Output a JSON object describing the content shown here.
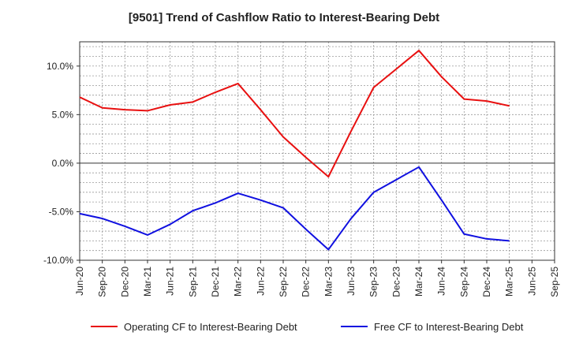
{
  "chart_data": {
    "type": "line",
    "title": "[9501]  Trend of Cashflow Ratio to Interest-Bearing Debt",
    "xlabel": "",
    "ylabel": "",
    "x": [
      "Jun-20",
      "Sep-20",
      "Dec-20",
      "Mar-21",
      "Jun-21",
      "Sep-21",
      "Dec-21",
      "Mar-22",
      "Jun-22",
      "Sep-22",
      "Dec-22",
      "Mar-23",
      "Jun-23",
      "Sep-23",
      "Dec-23",
      "Mar-24",
      "Jun-24",
      "Sep-24",
      "Dec-24",
      "Mar-25",
      "Jun-25",
      "Sep-25"
    ],
    "ylim": [
      -10,
      12.5
    ],
    "yticks": [
      -10,
      -5,
      0,
      5,
      10
    ],
    "ytick_labels": [
      "-10.0%",
      "-5.0%",
      "0.0%",
      "5.0%",
      "10.0%"
    ],
    "grid": true,
    "legend_position": "bottom",
    "series": [
      {
        "name": "Operating CF to Interest-Bearing Debt",
        "color": "#e81010",
        "values": [
          6.8,
          5.7,
          5.5,
          5.4,
          6.0,
          6.3,
          7.3,
          8.2,
          5.5,
          2.7,
          0.6,
          -1.4,
          3.3,
          7.8,
          9.7,
          11.6,
          8.9,
          6.6,
          6.4,
          5.9,
          null,
          null
        ]
      },
      {
        "name": "Free CF to Interest-Bearing Debt",
        "color": "#1010e0",
        "values": [
          -5.2,
          -5.7,
          -6.5,
          -7.4,
          -6.3,
          -4.9,
          -4.1,
          -3.1,
          -3.8,
          -4.6,
          -6.8,
          -8.9,
          -5.7,
          -3.0,
          -1.7,
          -0.4,
          -3.8,
          -7.3,
          -7.8,
          -8.0,
          null,
          null
        ]
      }
    ]
  }
}
